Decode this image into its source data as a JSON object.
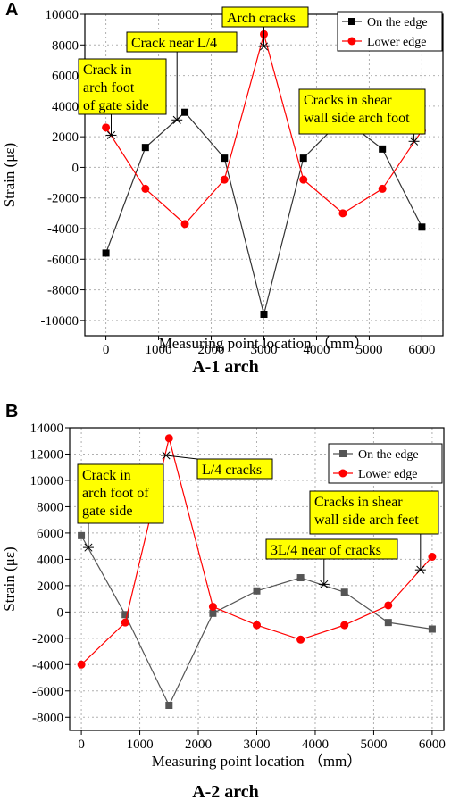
{
  "panels": [
    {
      "letter": "A",
      "caption": "A-1 arch"
    },
    {
      "letter": "B",
      "caption": "A-2 arch"
    }
  ],
  "chart_data": [
    {
      "type": "line",
      "xlabel": "Measuring point location （mm）",
      "ylabel": "Strain (με)",
      "xlim": [
        -400,
        6400
      ],
      "ylim": [
        -11000,
        10000
      ],
      "xticks": [
        0,
        1000,
        2000,
        3000,
        4000,
        5000,
        6000
      ],
      "yticks": [
        -10000,
        -8000,
        -6000,
        -4000,
        -2000,
        0,
        2000,
        4000,
        6000,
        8000,
        10000
      ],
      "grid": true,
      "legend_position": "top-right",
      "x": [
        0,
        750,
        1500,
        2250,
        3000,
        3750,
        4500,
        5250,
        6000
      ],
      "series": [
        {
          "name": "On the edge",
          "color": "#333333",
          "marker": "square",
          "values": [
            -5600,
            1300,
            3600,
            600,
            -9600,
            600,
            3200,
            1200,
            -3900
          ]
        },
        {
          "name": "Lower edge",
          "color": "#ff0000",
          "marker": "circle",
          "values": [
            2600,
            -1400,
            -3700,
            -800,
            8700,
            -800,
            -3000,
            -1400,
            2400
          ]
        }
      ],
      "annotations": [
        {
          "lines": [
            "Crack in",
            "arch foot",
            "of gate side"
          ],
          "point": [
            100,
            2100
          ]
        },
        {
          "lines": [
            "Crack near L/4"
          ],
          "point": [
            1350,
            3100
          ]
        },
        {
          "lines": [
            "Arch cracks"
          ],
          "point": [
            3000,
            7900
          ]
        },
        {
          "lines": [
            "Cracks in shear",
            "wall side arch foot"
          ],
          "point": [
            5850,
            1700
          ]
        }
      ]
    },
    {
      "type": "line",
      "xlabel": "Measuring point location （mm）",
      "ylabel": "Strain (με)",
      "xlim": [
        -200,
        6200
      ],
      "ylim": [
        -9000,
        14000
      ],
      "xticks": [
        0,
        1000,
        2000,
        3000,
        4000,
        5000,
        6000
      ],
      "yticks": [
        -8000,
        -6000,
        -4000,
        -2000,
        0,
        2000,
        4000,
        6000,
        8000,
        10000,
        12000,
        14000
      ],
      "grid": true,
      "legend_position": "top-right",
      "x": [
        0,
        750,
        1500,
        2250,
        3000,
        3750,
        4500,
        5250,
        6000
      ],
      "series": [
        {
          "name": "On the edge",
          "color": "#555555",
          "marker": "square",
          "values": [
            5800,
            -200,
            -7100,
            -100,
            1600,
            2600,
            1500,
            -800,
            -1300
          ]
        },
        {
          "name": "Lower edge",
          "color": "#ff0000",
          "marker": "circle",
          "values": [
            -4000,
            -800,
            13200,
            400,
            -1000,
            -2100,
            -1000,
            500,
            4200
          ]
        }
      ],
      "annotations": [
        {
          "lines": [
            "Crack in",
            "arch foot of",
            "gate side"
          ],
          "point": [
            120,
            4900
          ]
        },
        {
          "lines": [
            "L/4 cracks"
          ],
          "point": [
            1450,
            11900
          ]
        },
        {
          "lines": [
            "3L/4 near of cracks"
          ],
          "point": [
            4150,
            2100
          ]
        },
        {
          "lines": [
            "Cracks in shear",
            "wall side arch feet"
          ],
          "point": [
            5800,
            3200
          ]
        }
      ]
    }
  ]
}
